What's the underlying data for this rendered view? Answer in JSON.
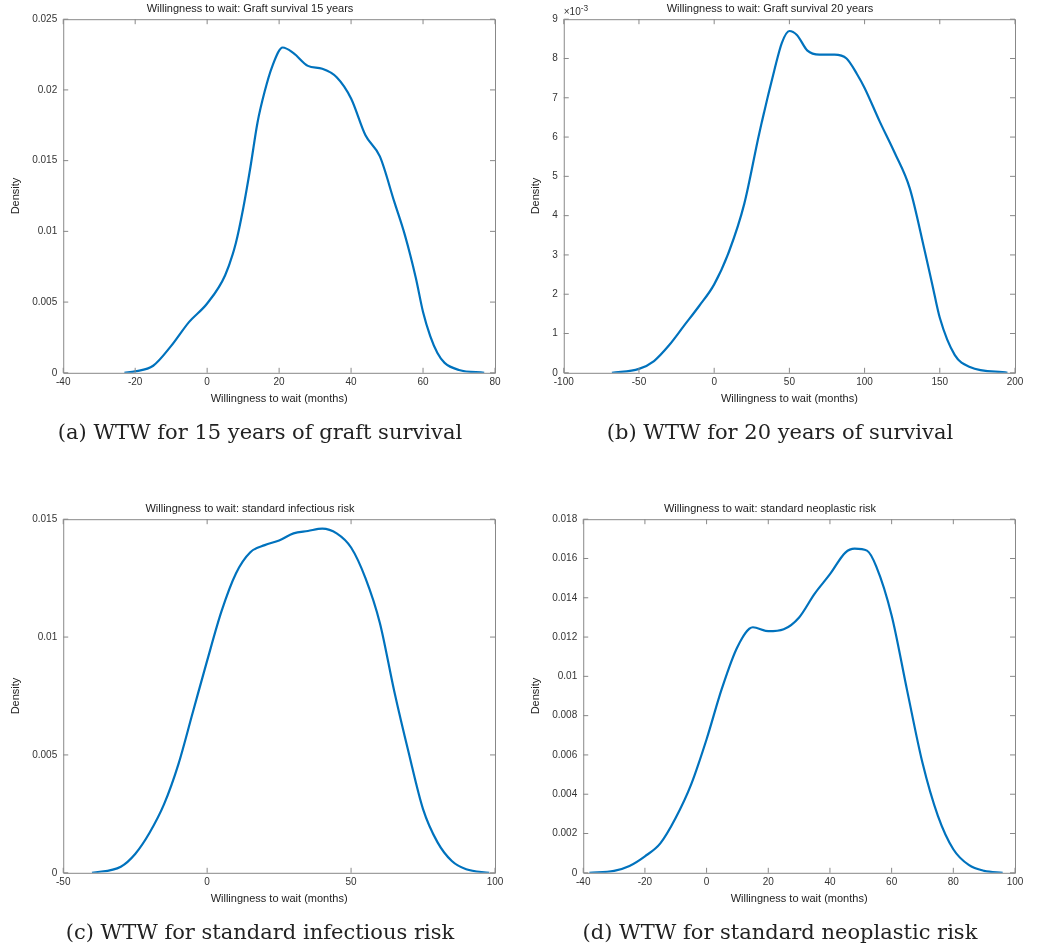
{
  "chart_data": [
    {
      "type": "line",
      "title": "Willingness to wait: Graft survival 15 years",
      "xlabel": "Willingness to wait (months)",
      "ylabel": "Density",
      "annotations": [
        "(a) WTW for 15 years of graft survival"
      ],
      "xlim": [
        -40,
        80
      ],
      "xticks": [
        -40,
        -20,
        0,
        20,
        40,
        60,
        80
      ],
      "ylim": [
        0,
        0.025
      ],
      "yticks": [
        0,
        0.005,
        0.01,
        0.015,
        0.02,
        0.025
      ],
      "grid": false,
      "legend": false,
      "marker": "none",
      "line_style": "solid",
      "series": [
        {
          "color": "#0072bd",
          "x": [
            -23,
            -20,
            -15,
            -10,
            -5,
            0,
            5,
            8,
            10,
            12,
            14,
            16,
            18,
            21,
            24,
            28,
            32,
            36,
            40,
            44,
            48,
            52,
            55,
            58,
            60,
            62,
            64,
            66,
            70,
            77
          ],
          "values": [
            0,
            0.0001,
            0.0005,
            0.0019,
            0.0036,
            0.0049,
            0.0069,
            0.0092,
            0.0116,
            0.0145,
            0.0177,
            0.0199,
            0.0216,
            0.023,
            0.0226,
            0.0217,
            0.0215,
            0.0209,
            0.0194,
            0.0168,
            0.0153,
            0.0121,
            0.0097,
            0.0067,
            0.0043,
            0.0026,
            0.0014,
            0.0007,
            0.0002,
            0
          ]
        }
      ]
    },
    {
      "type": "line",
      "title": "Willingness to wait: Graft survival 20 years",
      "xlabel": "Willingness to wait (months)",
      "ylabel": "Density",
      "annotations": [
        "×10$^{-3}$",
        "(b) WTW for 20 years of survival"
      ],
      "xlim": [
        -100,
        200
      ],
      "xticks": [
        -100,
        -50,
        0,
        50,
        100,
        150,
        200
      ],
      "ylim": [
        0,
        9
      ],
      "yticks": [
        0,
        1,
        2,
        3,
        4,
        5,
        6,
        7,
        8,
        9
      ],
      "grid": false,
      "legend": false,
      "marker": "none",
      "line_style": "solid",
      "series": [
        {
          "color": "#0072bd",
          "x": [
            -68,
            -50,
            -40,
            -30,
            -20,
            -10,
            0,
            10,
            20,
            30,
            40,
            45,
            50,
            55,
            62,
            70,
            80,
            88,
            95,
            100,
            110,
            120,
            130,
            140,
            145,
            150,
            160,
            170,
            195
          ],
          "values": [
            0,
            0.1,
            0.3,
            0.7,
            1.2,
            1.7,
            2.25,
            3.1,
            4.3,
            6.1,
            7.7,
            8.4,
            8.7,
            8.6,
            8.2,
            8.1,
            8.1,
            8.0,
            7.6,
            7.25,
            6.4,
            5.6,
            4.7,
            3.1,
            2.25,
            1.4,
            0.45,
            0.15,
            0
          ]
        }
      ]
    },
    {
      "type": "line",
      "title": "Willingness to wait: standard infectious risk",
      "xlabel": "Willingness to wait (months)",
      "ylabel": "Density",
      "annotations": [
        "(c) WTW for standard infectious risk"
      ],
      "xlim": [
        -50,
        100
      ],
      "xticks": [
        -50,
        0,
        50,
        100
      ],
      "ylim": [
        0,
        0.015
      ],
      "yticks": [
        0,
        0.005,
        0.01,
        0.015
      ],
      "grid": false,
      "legend": false,
      "marker": "none",
      "line_style": "solid",
      "series": [
        {
          "color": "#0072bd",
          "x": [
            -40,
            -30,
            -25,
            -20,
            -15,
            -10,
            -5,
            0,
            5,
            10,
            15,
            20,
            25,
            30,
            35,
            40,
            45,
            50,
            55,
            60,
            65,
            70,
            75,
            80,
            85,
            90,
            98
          ],
          "values": [
            0,
            0.00026,
            0.0008,
            0.0017,
            0.0029,
            0.0046,
            0.0068,
            0.009,
            0.0111,
            0.0127,
            0.0136,
            0.0139,
            0.0141,
            0.0144,
            0.0145,
            0.0146,
            0.0144,
            0.0138,
            0.0125,
            0.0106,
            0.0077,
            0.0051,
            0.0027,
            0.0013,
            0.0005,
            0.00015,
            0
          ]
        }
      ]
    },
    {
      "type": "line",
      "title": "Willingness to wait: standard neoplastic risk",
      "xlabel": "Willingness to wait (months)",
      "ylabel": "Density",
      "annotations": [
        "(d) WTW for standard neoplastic risk"
      ],
      "xlim": [
        -40,
        100
      ],
      "xticks": [
        -40,
        -20,
        0,
        20,
        40,
        60,
        80,
        100
      ],
      "ylim": [
        0,
        0.018
      ],
      "yticks": [
        0,
        0.002,
        0.004,
        0.006,
        0.008,
        0.01,
        0.012,
        0.014,
        0.016,
        0.018
      ],
      "grid": false,
      "legend": false,
      "marker": "none",
      "line_style": "solid",
      "series": [
        {
          "color": "#0072bd",
          "x": [
            -38,
            -30,
            -25,
            -20,
            -15,
            -10,
            -5,
            0,
            5,
            10,
            15,
            20,
            25,
            30,
            35,
            40,
            45,
            48,
            52,
            55,
            60,
            65,
            70,
            75,
            80,
            85,
            90,
            96
          ],
          "values": [
            0,
            0.0001,
            0.00035,
            0.00084,
            0.0015,
            0.0028,
            0.0045,
            0.0068,
            0.0094,
            0.0115,
            0.0125,
            0.0123,
            0.0124,
            0.013,
            0.0142,
            0.0152,
            0.0163,
            0.0165,
            0.0164,
            0.0156,
            0.0131,
            0.0093,
            0.0056,
            0.0029,
            0.0012,
            0.0004,
            0.0001,
            0
          ]
        }
      ]
    }
  ]
}
